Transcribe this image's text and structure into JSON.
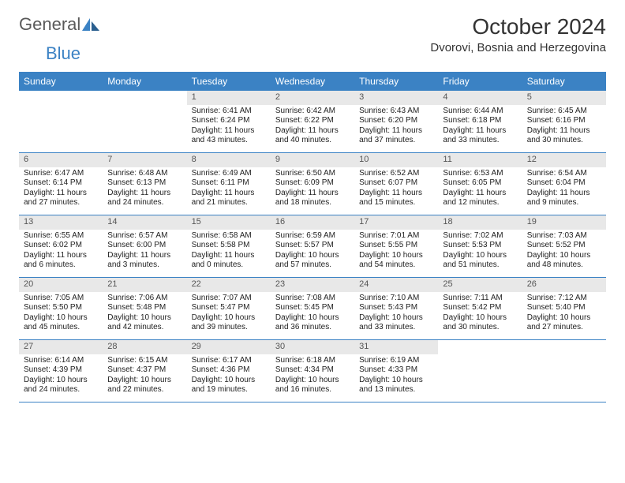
{
  "logo": {
    "text1": "General",
    "text2": "Blue"
  },
  "title": "October 2024",
  "location": "Dvorovi, Bosnia and Herzegovina",
  "colors": {
    "header_bg": "#3b82c4",
    "header_text": "#ffffff",
    "daynum_bg": "#e8e8e8",
    "daynum_text": "#555555",
    "border": "#3b82c4",
    "body_text": "#222222",
    "logo_gray": "#5a5a5a",
    "logo_blue": "#3b82c4"
  },
  "day_names": [
    "Sunday",
    "Monday",
    "Tuesday",
    "Wednesday",
    "Thursday",
    "Friday",
    "Saturday"
  ],
  "weeks": [
    [
      null,
      null,
      {
        "n": "1",
        "sr": "Sunrise: 6:41 AM",
        "ss": "Sunset: 6:24 PM",
        "dl": "Daylight: 11 hours and 43 minutes."
      },
      {
        "n": "2",
        "sr": "Sunrise: 6:42 AM",
        "ss": "Sunset: 6:22 PM",
        "dl": "Daylight: 11 hours and 40 minutes."
      },
      {
        "n": "3",
        "sr": "Sunrise: 6:43 AM",
        "ss": "Sunset: 6:20 PM",
        "dl": "Daylight: 11 hours and 37 minutes."
      },
      {
        "n": "4",
        "sr": "Sunrise: 6:44 AM",
        "ss": "Sunset: 6:18 PM",
        "dl": "Daylight: 11 hours and 33 minutes."
      },
      {
        "n": "5",
        "sr": "Sunrise: 6:45 AM",
        "ss": "Sunset: 6:16 PM",
        "dl": "Daylight: 11 hours and 30 minutes."
      }
    ],
    [
      {
        "n": "6",
        "sr": "Sunrise: 6:47 AM",
        "ss": "Sunset: 6:14 PM",
        "dl": "Daylight: 11 hours and 27 minutes."
      },
      {
        "n": "7",
        "sr": "Sunrise: 6:48 AM",
        "ss": "Sunset: 6:13 PM",
        "dl": "Daylight: 11 hours and 24 minutes."
      },
      {
        "n": "8",
        "sr": "Sunrise: 6:49 AM",
        "ss": "Sunset: 6:11 PM",
        "dl": "Daylight: 11 hours and 21 minutes."
      },
      {
        "n": "9",
        "sr": "Sunrise: 6:50 AM",
        "ss": "Sunset: 6:09 PM",
        "dl": "Daylight: 11 hours and 18 minutes."
      },
      {
        "n": "10",
        "sr": "Sunrise: 6:52 AM",
        "ss": "Sunset: 6:07 PM",
        "dl": "Daylight: 11 hours and 15 minutes."
      },
      {
        "n": "11",
        "sr": "Sunrise: 6:53 AM",
        "ss": "Sunset: 6:05 PM",
        "dl": "Daylight: 11 hours and 12 minutes."
      },
      {
        "n": "12",
        "sr": "Sunrise: 6:54 AM",
        "ss": "Sunset: 6:04 PM",
        "dl": "Daylight: 11 hours and 9 minutes."
      }
    ],
    [
      {
        "n": "13",
        "sr": "Sunrise: 6:55 AM",
        "ss": "Sunset: 6:02 PM",
        "dl": "Daylight: 11 hours and 6 minutes."
      },
      {
        "n": "14",
        "sr": "Sunrise: 6:57 AM",
        "ss": "Sunset: 6:00 PM",
        "dl": "Daylight: 11 hours and 3 minutes."
      },
      {
        "n": "15",
        "sr": "Sunrise: 6:58 AM",
        "ss": "Sunset: 5:58 PM",
        "dl": "Daylight: 11 hours and 0 minutes."
      },
      {
        "n": "16",
        "sr": "Sunrise: 6:59 AM",
        "ss": "Sunset: 5:57 PM",
        "dl": "Daylight: 10 hours and 57 minutes."
      },
      {
        "n": "17",
        "sr": "Sunrise: 7:01 AM",
        "ss": "Sunset: 5:55 PM",
        "dl": "Daylight: 10 hours and 54 minutes."
      },
      {
        "n": "18",
        "sr": "Sunrise: 7:02 AM",
        "ss": "Sunset: 5:53 PM",
        "dl": "Daylight: 10 hours and 51 minutes."
      },
      {
        "n": "19",
        "sr": "Sunrise: 7:03 AM",
        "ss": "Sunset: 5:52 PM",
        "dl": "Daylight: 10 hours and 48 minutes."
      }
    ],
    [
      {
        "n": "20",
        "sr": "Sunrise: 7:05 AM",
        "ss": "Sunset: 5:50 PM",
        "dl": "Daylight: 10 hours and 45 minutes."
      },
      {
        "n": "21",
        "sr": "Sunrise: 7:06 AM",
        "ss": "Sunset: 5:48 PM",
        "dl": "Daylight: 10 hours and 42 minutes."
      },
      {
        "n": "22",
        "sr": "Sunrise: 7:07 AM",
        "ss": "Sunset: 5:47 PM",
        "dl": "Daylight: 10 hours and 39 minutes."
      },
      {
        "n": "23",
        "sr": "Sunrise: 7:08 AM",
        "ss": "Sunset: 5:45 PM",
        "dl": "Daylight: 10 hours and 36 minutes."
      },
      {
        "n": "24",
        "sr": "Sunrise: 7:10 AM",
        "ss": "Sunset: 5:43 PM",
        "dl": "Daylight: 10 hours and 33 minutes."
      },
      {
        "n": "25",
        "sr": "Sunrise: 7:11 AM",
        "ss": "Sunset: 5:42 PM",
        "dl": "Daylight: 10 hours and 30 minutes."
      },
      {
        "n": "26",
        "sr": "Sunrise: 7:12 AM",
        "ss": "Sunset: 5:40 PM",
        "dl": "Daylight: 10 hours and 27 minutes."
      }
    ],
    [
      {
        "n": "27",
        "sr": "Sunrise: 6:14 AM",
        "ss": "Sunset: 4:39 PM",
        "dl": "Daylight: 10 hours and 24 minutes."
      },
      {
        "n": "28",
        "sr": "Sunrise: 6:15 AM",
        "ss": "Sunset: 4:37 PM",
        "dl": "Daylight: 10 hours and 22 minutes."
      },
      {
        "n": "29",
        "sr": "Sunrise: 6:17 AM",
        "ss": "Sunset: 4:36 PM",
        "dl": "Daylight: 10 hours and 19 minutes."
      },
      {
        "n": "30",
        "sr": "Sunrise: 6:18 AM",
        "ss": "Sunset: 4:34 PM",
        "dl": "Daylight: 10 hours and 16 minutes."
      },
      {
        "n": "31",
        "sr": "Sunrise: 6:19 AM",
        "ss": "Sunset: 4:33 PM",
        "dl": "Daylight: 10 hours and 13 minutes."
      },
      null,
      null
    ]
  ]
}
